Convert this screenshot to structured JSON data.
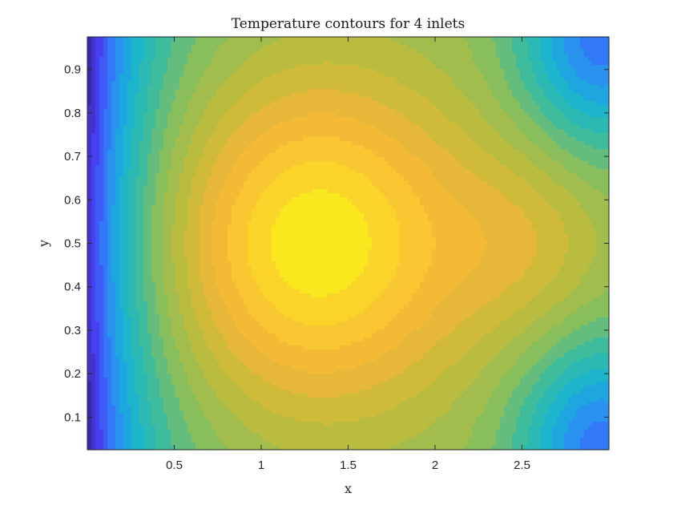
{
  "chart_data": {
    "type": "heatmap",
    "title": "Temperature contours for  4 inlets",
    "xlabel": "x",
    "ylabel": "y",
    "xlim": [
      0,
      3
    ],
    "ylim": [
      0.025,
      0.975
    ],
    "x_ticks": [
      "0.5",
      "1",
      "1.5",
      "2",
      "2.5"
    ],
    "x_tick_values": [
      0.5,
      1,
      1.5,
      2,
      2.5
    ],
    "y_ticks": [
      "0.1",
      "0.2",
      "0.3",
      "0.4",
      "0.5",
      "0.6",
      "0.7",
      "0.8",
      "0.9"
    ],
    "y_tick_values": [
      0.1,
      0.2,
      0.3,
      0.4,
      0.5,
      0.6,
      0.7,
      0.8,
      0.9
    ],
    "colormap": "parula",
    "colormap_stops": [
      "#3e26a8",
      "#4743f8",
      "#2e87f7",
      "#16b4d3",
      "#3bbc9e",
      "#8dbe5a",
      "#c1bc3a",
      "#f2b539",
      "#fbd02c",
      "#f9fb15"
    ],
    "field_description": "normalized temperature; hot core near x=1.3, y=0.5; cold near x=0 and right corners",
    "contour_levels": 20
  }
}
